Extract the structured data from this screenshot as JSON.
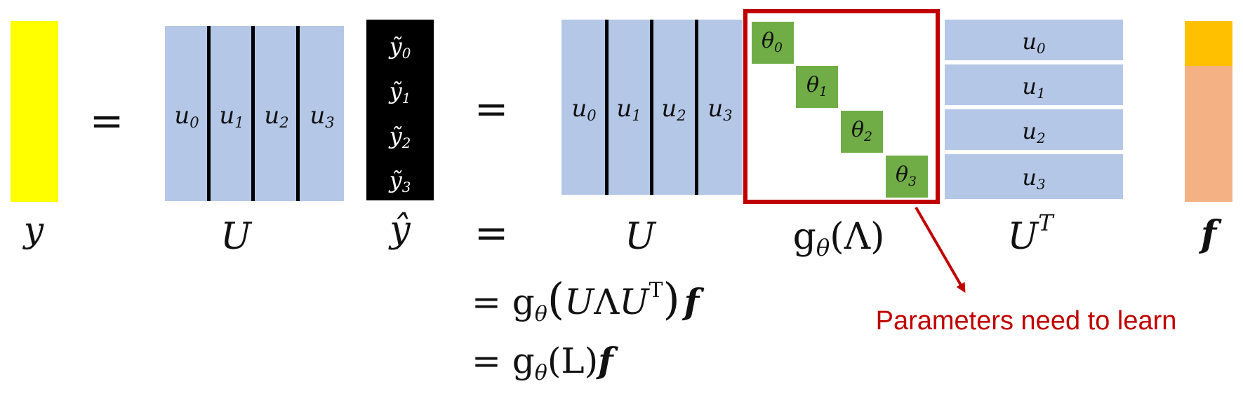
{
  "colors": {
    "y_vector": "#ffff00",
    "U_matrix": "#b4c7e7",
    "yhat_vector": "#000000",
    "theta_cell": "#70ad47",
    "f_top": "#ffc000",
    "f_body": "#f4b183",
    "annotation_red": "#c00000"
  },
  "equals_sign": "=",
  "vector_y": {
    "label": "y"
  },
  "matrix_U": {
    "label": "U",
    "columns": [
      "u",
      "u",
      "u",
      "u"
    ],
    "column_subscripts": [
      "0",
      "1",
      "2",
      "3"
    ]
  },
  "vector_yhat": {
    "label": "ŷ",
    "entries": [
      "ỹ",
      "ỹ",
      "ỹ",
      "ỹ"
    ],
    "entry_subscripts": [
      "0",
      "1",
      "2",
      "3"
    ]
  },
  "diag_g": {
    "label_g": "g",
    "label_sub": "θ",
    "label_arg": "(Λ)",
    "cells": [
      "θ",
      "θ",
      "θ",
      "θ"
    ],
    "cell_subscripts": [
      "0",
      "1",
      "2",
      "3"
    ]
  },
  "matrix_UT": {
    "label": "U",
    "label_sup": "T",
    "rows": [
      "u",
      "u",
      "u",
      "u"
    ],
    "row_subscripts": [
      "0",
      "1",
      "2",
      "3"
    ]
  },
  "vector_f": {
    "label": "f"
  },
  "derivation": {
    "line1": {
      "prefix": "= g",
      "sub": "θ",
      "open": "(",
      "U1": "U",
      "lambda": "Λ",
      "U2": "U",
      "sup": "T",
      "close": ")",
      "f": "f"
    },
    "line2": {
      "prefix": "= g",
      "sub": "θ",
      "arg": "(L)",
      "f": "f"
    }
  },
  "annotation": {
    "text": "Parameters need to learn"
  }
}
